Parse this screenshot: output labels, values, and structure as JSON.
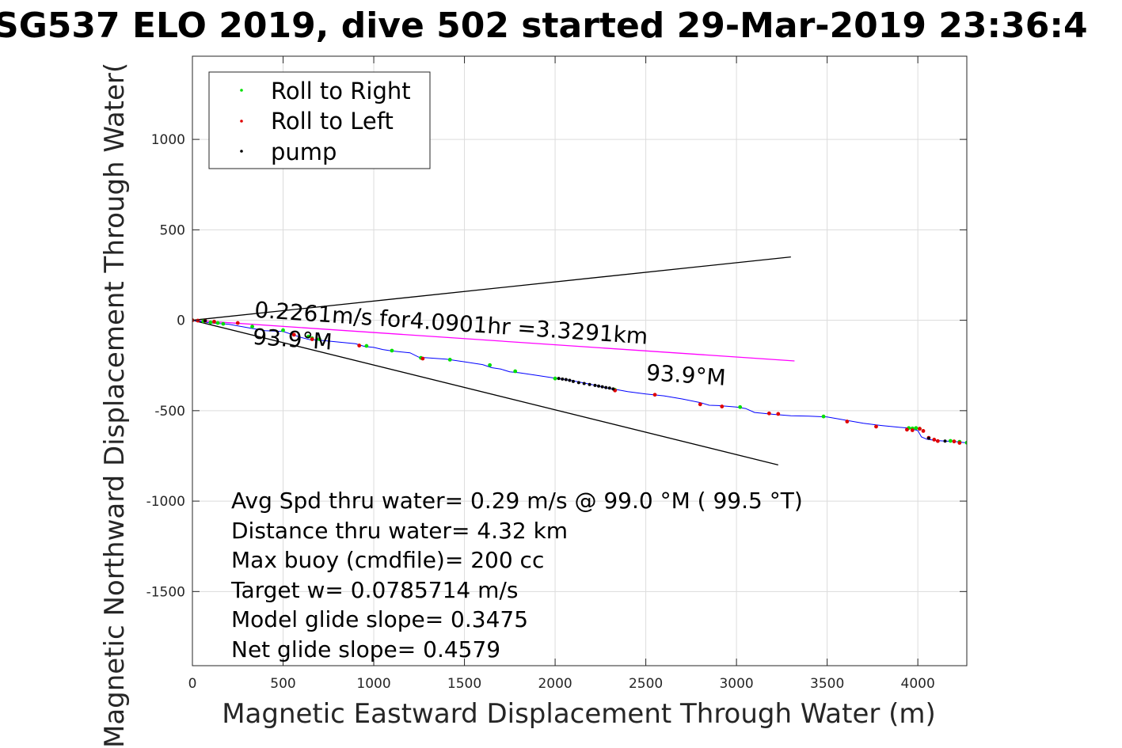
{
  "chart_data": {
    "type": "scatter",
    "title": "SG537 ELO 2019, dive 502 started 29-Mar-2019 23:36:4",
    "xlabel": "Magnetic Eastward Displacement Through Water (m)",
    "ylabel": "Magnetic Northward Displacement Through Water(",
    "xlim": [
      0,
      4270
    ],
    "ylim": [
      -1910,
      1460
    ],
    "xticks": [
      0,
      500,
      1000,
      1500,
      2000,
      2500,
      3000,
      3500,
      4000
    ],
    "yticks": [
      1000,
      500,
      0,
      -500,
      -1000,
      -1500
    ],
    "xtick_labels": [
      "0",
      "500",
      "1000",
      "1500",
      "2000",
      "2500",
      "3000",
      "3500",
      "4000"
    ],
    "ytick_labels": [
      "1000",
      "500",
      "0",
      "-500",
      "-1000",
      "-1500"
    ],
    "grid": true,
    "legend_placement": "top-left",
    "legend": [
      {
        "label": "Roll to Right",
        "color": "#00e000"
      },
      {
        "label": "Roll to Left",
        "color": "#e00000"
      },
      {
        "label": "pump",
        "color": "#000000"
      }
    ],
    "track": {
      "name": "",
      "color": "#0000ff",
      "x": [
        0,
        100,
        200,
        300,
        400,
        500,
        600,
        650,
        700,
        800,
        900,
        950,
        1000,
        1050,
        1100,
        1200,
        1250,
        1300,
        1400,
        1500,
        1600,
        1650,
        1700,
        1750,
        1800,
        1900,
        2000,
        2100,
        2200,
        2300,
        2350,
        2400,
        2500,
        2600,
        2700,
        2800,
        2850,
        2900,
        3000,
        3050,
        3100,
        3200,
        3300,
        3400,
        3500,
        3600,
        3700,
        3800,
        3900,
        3950,
        4000,
        4020,
        4050,
        4100,
        4150,
        4200,
        4250,
        4270
      ],
      "y": [
        0,
        -15,
        -22,
        -40,
        -58,
        -62,
        -95,
        -108,
        -110,
        -120,
        -130,
        -145,
        -150,
        -162,
        -170,
        -180,
        -205,
        -208,
        -215,
        -230,
        -245,
        -262,
        -270,
        -285,
        -290,
        -305,
        -320,
        -335,
        -355,
        -378,
        -385,
        -395,
        -408,
        -418,
        -435,
        -455,
        -470,
        -472,
        -480,
        -488,
        -510,
        -520,
        -528,
        -530,
        -535,
        -552,
        -570,
        -582,
        -592,
        -596,
        -610,
        -645,
        -658,
        -665,
        -668,
        -670,
        -676,
        -678
      ]
    },
    "roll_right": {
      "x": [
        0,
        60,
        100,
        140,
        170,
        330,
        500,
        640,
        660,
        700,
        960,
        1100,
        1260,
        1420,
        1640,
        1780,
        2000,
        2330,
        3020,
        3480,
        3950,
        3970,
        3990,
        4010,
        4180,
        4230,
        4270
      ],
      "y": [
        0,
        -5,
        -12,
        -15,
        -20,
        -35,
        -55,
        -90,
        -100,
        -105,
        -142,
        -168,
        -208,
        -218,
        -248,
        -282,
        -322,
        -385,
        -480,
        -532,
        -596,
        -598,
        -596,
        -600,
        -667,
        -672,
        -677
      ]
    },
    "roll_left": {
      "x": [
        0,
        30,
        70,
        120,
        250,
        560,
        660,
        920,
        1270,
        2330,
        2550,
        2800,
        2920,
        3180,
        3230,
        3610,
        3770,
        3940,
        3970,
        4010,
        4030,
        4060,
        4090,
        4110,
        4200,
        4230
      ],
      "y": [
        0,
        -2,
        -3,
        -8,
        -15,
        -80,
        -105,
        -140,
        -212,
        -388,
        -412,
        -465,
        -477,
        -515,
        -518,
        -560,
        -588,
        -605,
        -608,
        -600,
        -612,
        -650,
        -660,
        -668,
        -670,
        -678
      ]
    },
    "pump": {
      "x": [
        70,
        2020,
        2040,
        2060,
        2080,
        2100,
        2130,
        2160,
        2190,
        2220,
        2240,
        2260,
        2280,
        2300,
        2320,
        4060,
        4150
      ],
      "y": [
        -3,
        -322,
        -325,
        -328,
        -332,
        -338,
        -345,
        -350,
        -355,
        -360,
        -364,
        -368,
        -372,
        -375,
        -380,
        -652,
        -668
      ]
    },
    "lines": [
      {
        "name": "",
        "color": "#000000",
        "x": [
          0,
          3300
        ],
        "y": [
          0,
          350
        ]
      },
      {
        "name": "",
        "color": "#000000",
        "x": [
          0,
          3230
        ],
        "y": [
          0,
          -800
        ]
      },
      {
        "name": "",
        "color": "#ff00ff",
        "x": [
          0,
          3320
        ],
        "y": [
          0,
          -225
        ]
      }
    ],
    "annotations": [
      {
        "text": "0.2261m/s for4.0901hr =3.3291km",
        "x": 340,
        "y": 17,
        "angle_deg": 3.9
      },
      {
        "text": "93.9°M",
        "x": 330,
        "y": -132,
        "angle_deg": 3.9
      },
      {
        "text": "93.9°M",
        "x": 2500,
        "y": -330,
        "angle_deg": 3.9
      }
    ],
    "stats": [
      "Avg Spd thru water=  0.29 m/s @  99.0 °M ( 99.5 °T)",
      "Distance thru water=  4.32 km",
      "Max buoy (cmdfile)= 200 cc",
      "Target w= 0.0785714 m/s",
      "Model glide slope= 0.3475",
      "Net glide slope= 0.4579"
    ]
  }
}
